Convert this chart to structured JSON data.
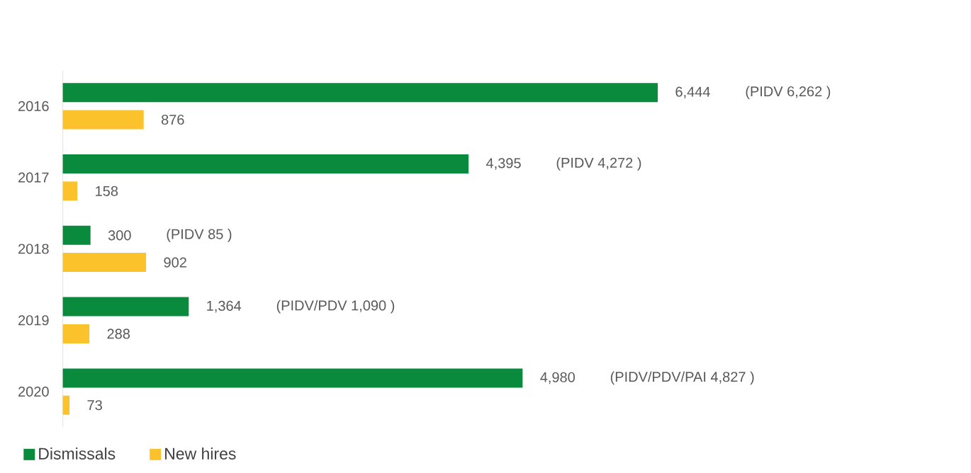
{
  "chart_data": {
    "type": "bar",
    "orientation": "horizontal",
    "categories": [
      "2016",
      "2017",
      "2018",
      "2019",
      "2020"
    ],
    "series": [
      {
        "name": "Dismissals",
        "color": "#0a8a3c",
        "values": [
          6444,
          4395,
          300,
          1364,
          4980
        ],
        "value_labels": [
          "6,444",
          "4,395",
          "300",
          "1,364",
          "4,980"
        ]
      },
      {
        "name": "New hires",
        "color": "#fcc22c",
        "values": [
          876,
          158,
          902,
          288,
          73
        ],
        "value_labels": [
          "876",
          "158",
          "902",
          "288",
          "73"
        ]
      }
    ],
    "annotations": [
      "(PIDV  6,262 )",
      "(PIDV  4,272 )",
      "(PIDV  85 )",
      "(PIDV/PDV  1,090 )",
      "(PIDV/PDV/PAI  4,827 )"
    ],
    "legend": "bottom left"
  }
}
